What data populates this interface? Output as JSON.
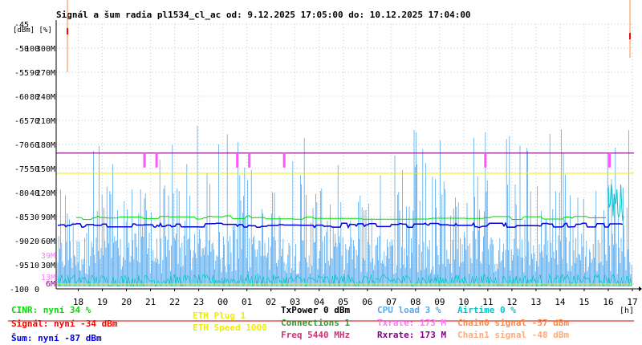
{
  "chart_data": {
    "type": "line",
    "title": "Signál a šum radia pl1534_cl_ac od: 9.12.2025 17:05:00 do: 10.12.2025 17:04:00",
    "yunit_label": "[dBm] [%]",
    "xunit_label": "[h]",
    "ylim": [
      -100,
      -45
    ],
    "yticks_dbm": [
      -45,
      -50,
      -55,
      -60,
      -65,
      -70,
      -75,
      -80,
      -85,
      -90,
      -95,
      -100
    ],
    "yticks_pct": [
      100,
      90,
      80,
      70,
      60,
      50,
      40,
      30,
      20,
      10,
      0
    ],
    "yticks_rate": [
      "300M",
      "270M",
      "240M",
      "210M",
      "180M",
      "150M",
      "120M",
      "90M",
      "60M",
      "30M"
    ],
    "yticks_rate_extra": [
      {
        "label": "39M",
        "value": -93
      },
      {
        "label": "13M",
        "value": -97.5
      },
      {
        "label": "6M",
        "value": -98.8
      }
    ],
    "x_ticks": [
      "18",
      "19",
      "20",
      "21",
      "22",
      "23",
      "00",
      "01",
      "02",
      "03",
      "04",
      "05",
      "06",
      "07",
      "08",
      "09",
      "10",
      "11",
      "12",
      "13",
      "14",
      "15",
      "16",
      "17"
    ],
    "x_range_hours": [
      17.083,
      41.067
    ],
    "series": [
      {
        "name": "CINR",
        "color": "#00dd00",
        "baseline": -85.2
      },
      {
        "name": "Signál",
        "color": "#ff0000",
        "spikes": [
          {
            "t": 17.55,
            "value": -46.5
          },
          {
            "t": 40.9,
            "value": -47.5
          }
        ]
      },
      {
        "name": "Šum",
        "color": "#0000dd",
        "baseline": -86.8
      },
      {
        "name": "Rxrate",
        "color": "#880088",
        "baseline": -71.8
      },
      {
        "name": "Chain0 signal",
        "color": "#ff8844",
        "spikes": [
          {
            "t": 17.55,
            "value": -55
          },
          {
            "t": 40.9,
            "value": -52
          }
        ]
      },
      {
        "name": "Chain1 signal",
        "color": "#ffaa77"
      },
      {
        "name": "CPU load",
        "color": "#55aaee"
      },
      {
        "name": "Airtime",
        "color": "#00c8c8"
      },
      {
        "name": "ETH Plug",
        "color": "#eeee00",
        "baseline": -76
      },
      {
        "name": "ETH Speed",
        "color": "#eeee00",
        "baseline": -99
      },
      {
        "name": "Txrate",
        "color": "#ff55ff",
        "marks": [
          20.75,
          21.25,
          24.6,
          25.1,
          26.55,
          34.9,
          40.05
        ]
      }
    ]
  },
  "legend": {
    "cinr": "CINR: nyní 34 %",
    "signal": "Signál: nyní -34 dBm",
    "noise": "Šum: nyní -87 dBm",
    "eth_plug": "ETH Plug 1",
    "eth_speed": "ETH Speed 1000",
    "txpower": "TxPower 0 dBm",
    "connections": "Connections 1",
    "freq": "Freq 5440 MHz",
    "cpu": "CPU load 3 %",
    "txrate": "Txrate: 173 M",
    "rxrate": "Rxrate: 173 M",
    "airtime": "Airtime 0 %",
    "chain0": "Chain0 signal -57 dBm",
    "chain1": "Chain1 signal -48 dBm"
  },
  "colors": {
    "cinr": "#00dd00",
    "signal": "#ff0000",
    "noise": "#0000dd",
    "eth": "#eeee00",
    "txpower": "#000000",
    "connections": "#339933",
    "freq": "#cc3377",
    "cpu": "#55aaee",
    "txrate": "#ff77ff",
    "rxrate": "#880088",
    "airtime": "#00c8c8",
    "chain0": "#ff8844",
    "chain1": "#ffaa77"
  }
}
